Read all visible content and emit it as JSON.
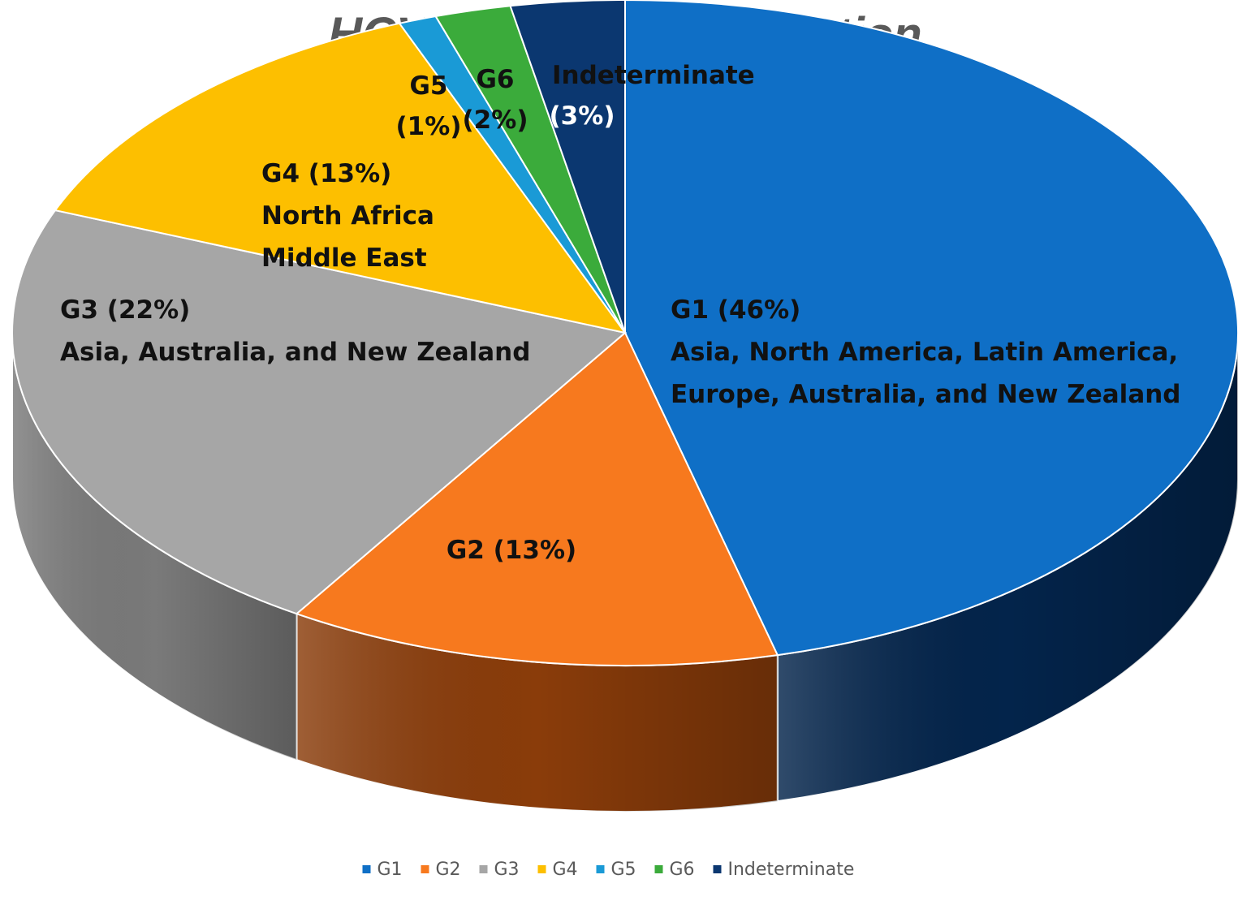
{
  "chart_data": {
    "type": "pie",
    "title": "HCV genotype distribution",
    "categories": [
      "G1",
      "G2",
      "G3",
      "G4",
      "G5",
      "G6",
      "Indeterminate"
    ],
    "values": [
      46,
      13,
      22,
      13,
      1,
      2,
      3
    ],
    "unit": "%",
    "colors": [
      "#0f6fc6",
      "#f7791e",
      "#a6a6a6",
      "#fdbf00",
      "#1a9ad6",
      "#3bab3b",
      "#0b3770"
    ],
    "side_colors": [
      "#03244b",
      "#8a3c0a",
      "#7a7a7a",
      "#b88800",
      "#0e6a99",
      "#22762a",
      "#04203f"
    ],
    "labels": [
      {
        "lines": [
          "G1 (46%)",
          "Asia, North America, Latin America,",
          "Europe, Australia, and New Zealand"
        ]
      },
      {
        "lines": [
          "G2 (13%)"
        ]
      },
      {
        "lines": [
          "G3 (22%)",
          "Asia, Australia, and New Zealand"
        ]
      },
      {
        "lines": [
          "G4 (13%)",
          "North Africa",
          "Middle East"
        ]
      },
      {
        "lines": [
          "G5",
          "(1%)"
        ]
      },
      {
        "lines": [
          "G6",
          "(2%)"
        ]
      },
      {
        "lines": [
          "Indeterminate",
          "(3%)"
        ]
      }
    ],
    "legend": {
      "position": "bottom",
      "items": [
        "G1",
        "G2",
        "G3",
        "G4",
        "G5",
        "G6",
        "Indeterminate"
      ]
    }
  }
}
